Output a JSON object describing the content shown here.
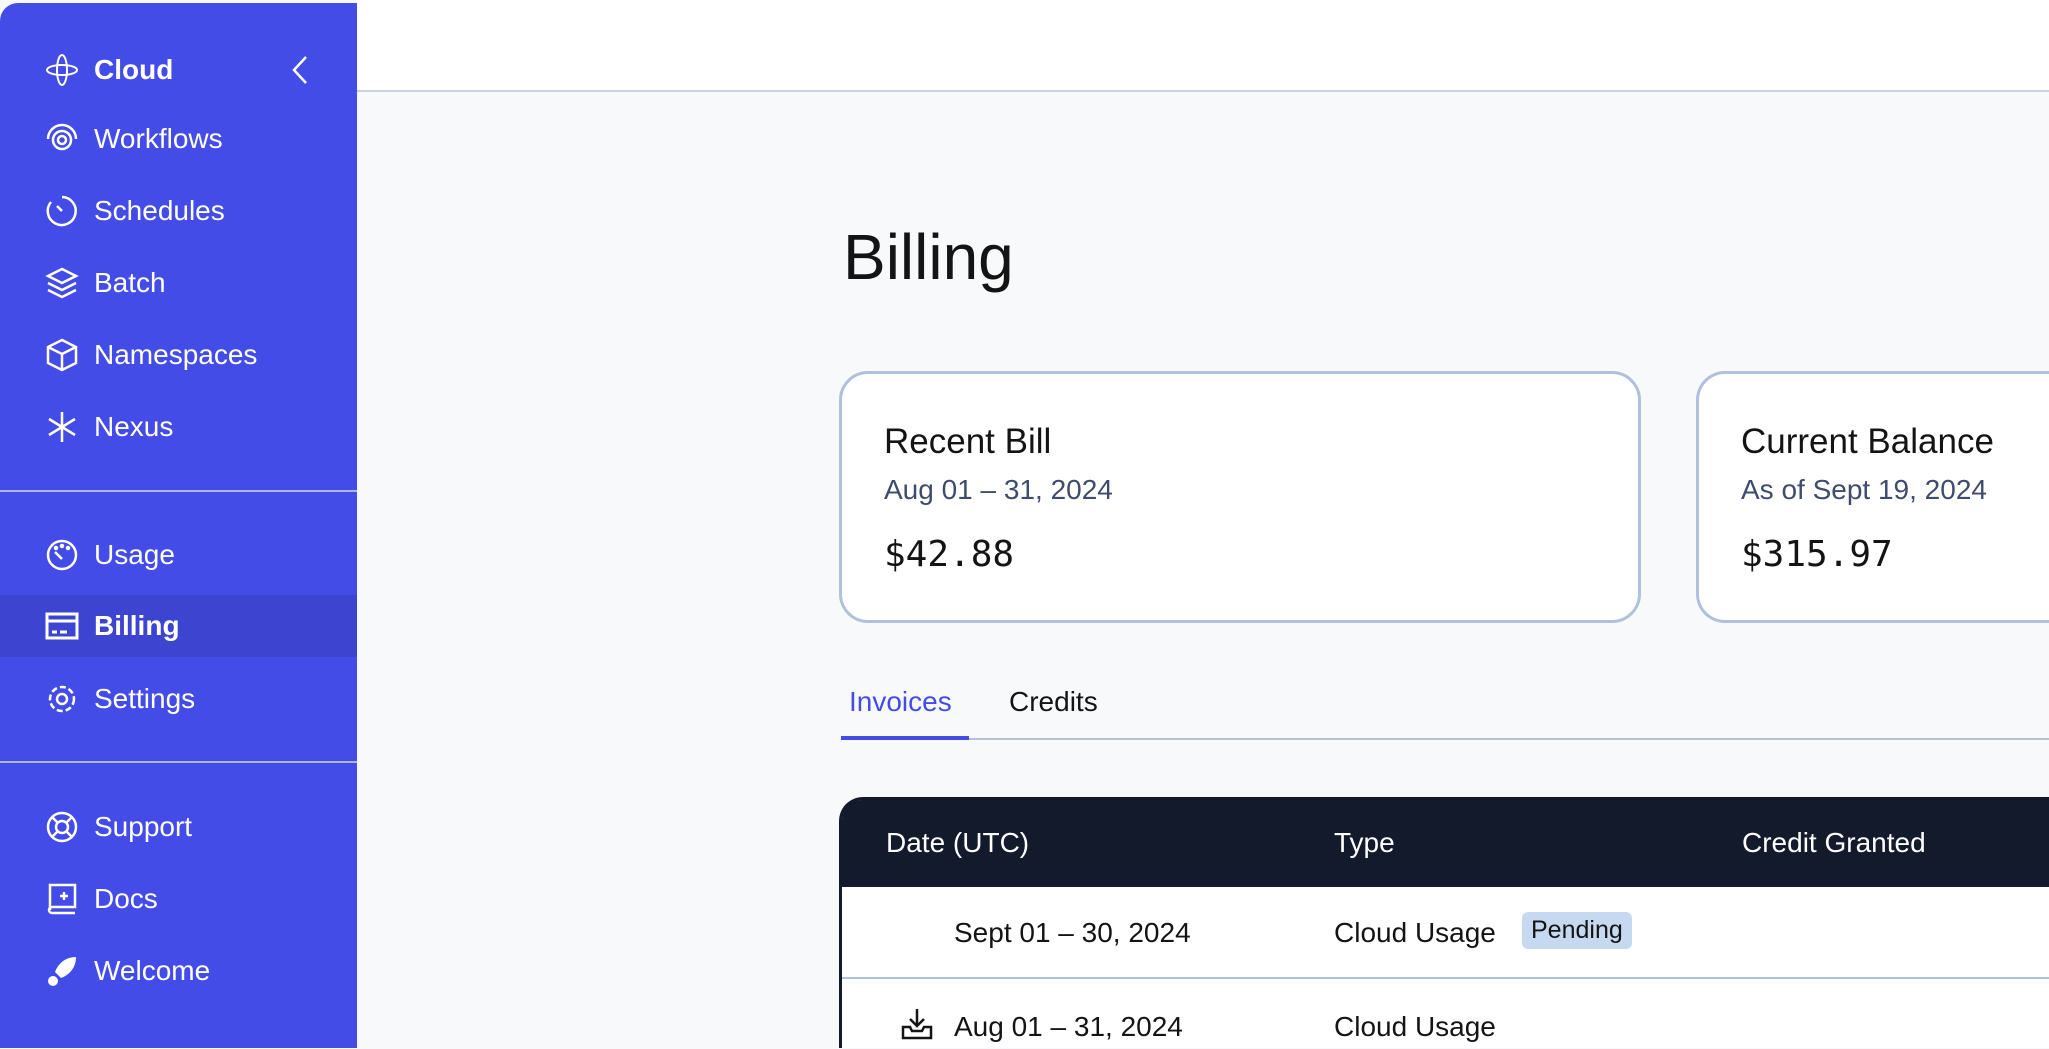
{
  "sidebar": {
    "brand": "Cloud",
    "items": [
      {
        "label": "Workflows",
        "icon": "workflows-icon"
      },
      {
        "label": "Schedules",
        "icon": "schedules-icon"
      },
      {
        "label": "Batch",
        "icon": "batch-icon"
      },
      {
        "label": "Namespaces",
        "icon": "namespaces-icon"
      },
      {
        "label": "Nexus",
        "icon": "nexus-icon"
      },
      {
        "label": "Usage",
        "icon": "usage-icon"
      },
      {
        "label": "Billing",
        "icon": "billing-icon",
        "active": true
      },
      {
        "label": "Settings",
        "icon": "settings-icon"
      },
      {
        "label": "Support",
        "icon": "support-icon"
      },
      {
        "label": "Docs",
        "icon": "docs-icon"
      },
      {
        "label": "Welcome",
        "icon": "welcome-icon"
      }
    ]
  },
  "page": {
    "title": "Billing"
  },
  "cards": [
    {
      "title": "Recent Bill",
      "subtitle": "Aug 01 – 31, 2024",
      "amount": "$42.88"
    },
    {
      "title": "Current Balance",
      "subtitle": "As of Sept 19, 2024",
      "amount": "$315.97"
    }
  ],
  "tabs": [
    {
      "label": "Invoices",
      "active": true
    },
    {
      "label": "Credits"
    }
  ],
  "table": {
    "columns": [
      "Date (UTC)",
      "Type",
      "Credit Granted"
    ],
    "rows": [
      {
        "date": "Sept 01 – 30, 2024",
        "type": "Cloud Usage",
        "badge": "Pending"
      },
      {
        "date": "Aug 01 – 31, 2024",
        "type": "Cloud Usage"
      }
    ]
  },
  "colors": {
    "accent": "#444ce7",
    "table_header": "#131a2b",
    "badge": "#c7d9f0"
  }
}
